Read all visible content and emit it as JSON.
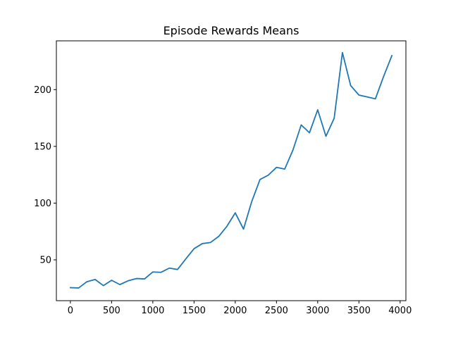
{
  "chart_data": {
    "type": "line",
    "title": "Episode Rewards Means",
    "xlabel": "",
    "ylabel": "",
    "xlim": [
      -170,
      4070
    ],
    "ylim": [
      14,
      243
    ],
    "xticks": [
      0,
      500,
      1000,
      1500,
      2000,
      2500,
      3000,
      3500,
      4000
    ],
    "yticks": [
      50,
      100,
      150,
      200
    ],
    "grid": false,
    "legend": "none",
    "series": [
      {
        "color": "#1f77b4",
        "x": [
          0,
          100,
          200,
          300,
          400,
          500,
          600,
          700,
          800,
          900,
          1000,
          1100,
          1200,
          1300,
          1400,
          1500,
          1600,
          1700,
          1800,
          1900,
          2000,
          2100,
          2200,
          2300,
          2400,
          2500,
          2600,
          2700,
          2800,
          2900,
          3000,
          3100,
          3200,
          3300,
          3400,
          3500,
          3600,
          3700,
          3800,
          3900
        ],
        "y": [
          25.5,
          25.2,
          30.7,
          32.7,
          27.3,
          32.0,
          28.2,
          31.5,
          33.5,
          33.2,
          39.3,
          39.0,
          42.7,
          41.5,
          50.8,
          59.8,
          64.3,
          65.3,
          70.7,
          79.7,
          91.4,
          77.1,
          101.4,
          120.8,
          124.6,
          131.5,
          130.0,
          146.8,
          168.9,
          162.0,
          182.2,
          158.9,
          174.8,
          232.7,
          203.6,
          195.2,
          193.6,
          191.9,
          211.7,
          230.0
        ]
      }
    ]
  }
}
